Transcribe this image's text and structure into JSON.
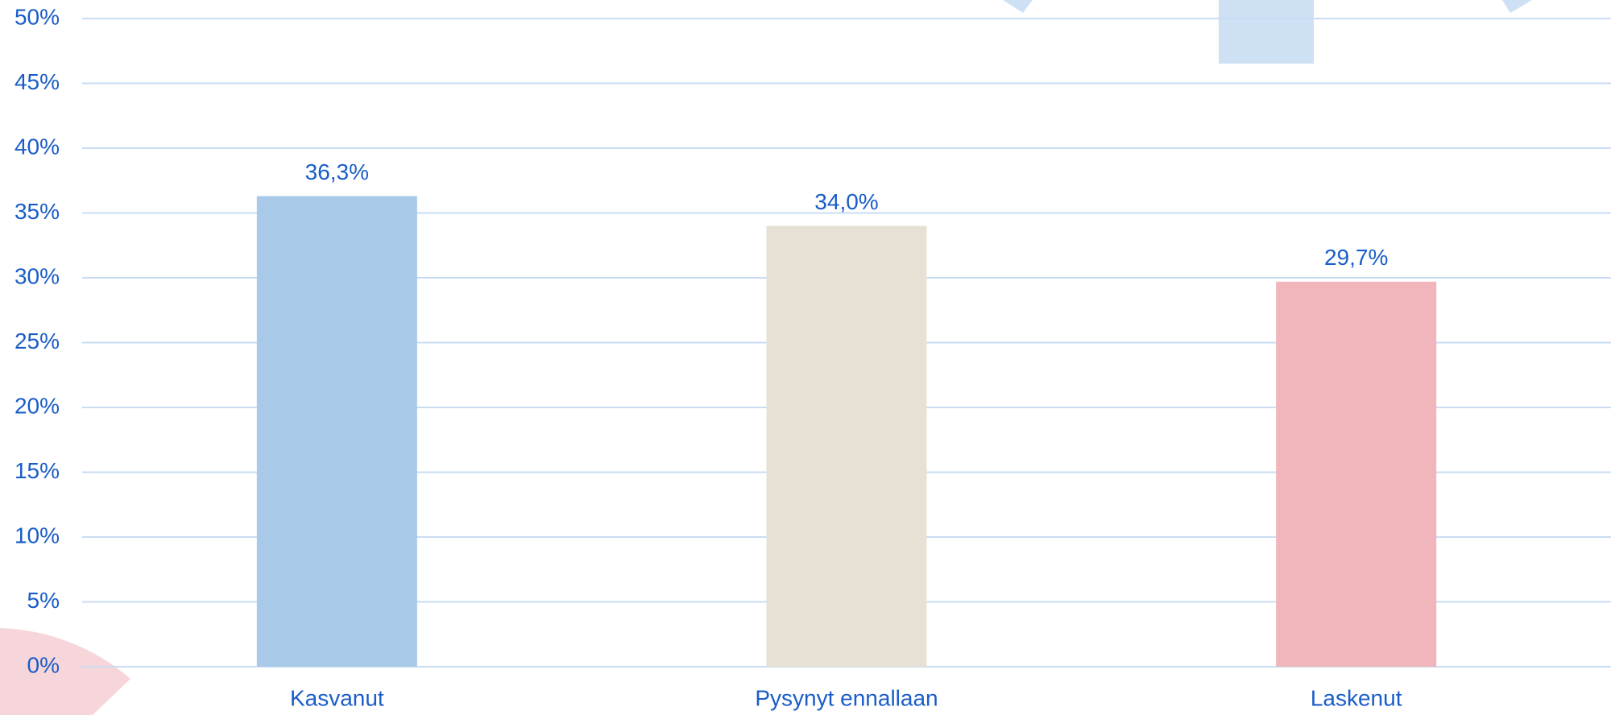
{
  "chart_data": {
    "type": "bar",
    "categories": [
      "Kasvanut",
      "Pysynyt ennallaan",
      "Laskenut"
    ],
    "values": [
      36.3,
      34.0,
      29.7
    ],
    "value_labels": [
      "36,3%",
      "34,0%",
      "29,7%"
    ],
    "colors": [
      "#a9c9e8",
      "#e7e0d4",
      "#f1b5bc"
    ],
    "ylim": [
      0,
      50
    ],
    "yticks": [
      {
        "value": 0,
        "label": "0%"
      },
      {
        "value": 5,
        "label": "5%"
      },
      {
        "value": 10,
        "label": "10%"
      },
      {
        "value": 15,
        "label": "15%"
      },
      {
        "value": 20,
        "label": "20%"
      },
      {
        "value": 25,
        "label": "25%"
      },
      {
        "value": 30,
        "label": "30%"
      },
      {
        "value": 35,
        "label": "35%"
      },
      {
        "value": 40,
        "label": "40%"
      },
      {
        "value": 45,
        "label": "45%"
      },
      {
        "value": 50,
        "label": "50%"
      }
    ],
    "grid": true
  }
}
